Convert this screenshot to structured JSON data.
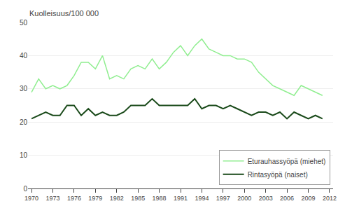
{
  "chart_data": {
    "type": "line",
    "ylabel": "Kuolleisuus/100 000",
    "x": [
      1970,
      1971,
      1972,
      1973,
      1974,
      1975,
      1976,
      1977,
      1978,
      1979,
      1980,
      1981,
      1982,
      1983,
      1984,
      1985,
      1986,
      1987,
      1988,
      1989,
      1990,
      1991,
      1992,
      1993,
      1994,
      1995,
      1996,
      1997,
      1998,
      1999,
      2000,
      2001,
      2002,
      2003,
      2004,
      2005,
      2006,
      2007,
      2008,
      2009,
      2010,
      2011
    ],
    "series": [
      {
        "name": "Eturauhassyöpä (miehet)",
        "color": "#90EE90",
        "values": [
          29,
          33,
          30,
          31,
          30,
          31,
          34,
          38,
          38,
          36,
          40,
          33,
          34,
          33,
          36,
          37,
          36,
          39,
          36,
          38,
          41,
          43,
          40,
          43,
          45,
          42,
          41,
          40,
          40,
          39,
          39,
          38,
          35,
          33,
          31,
          30,
          29,
          28,
          31,
          30,
          29,
          28
        ]
      },
      {
        "name": "Rintasyöpä (naiset)",
        "color": "#1a4a1a",
        "values": [
          21,
          22,
          23,
          22,
          22,
          25,
          25,
          22,
          24,
          22,
          23,
          22,
          22,
          23,
          25,
          25,
          25,
          27,
          25,
          25,
          25,
          25,
          25,
          27,
          24,
          25,
          25,
          24,
          25,
          24,
          23,
          22,
          23,
          23,
          22,
          23,
          21,
          23,
          22,
          21,
          22,
          21
        ]
      }
    ],
    "xlim": [
      1969.5,
      2012.5
    ],
    "xticks": [
      1970,
      1973,
      1976,
      1979,
      1982,
      1985,
      1988,
      1991,
      1994,
      1997,
      2000,
      2003,
      2006,
      2009,
      2012
    ],
    "ylim": [
      0,
      50
    ],
    "yticks": [
      0,
      10,
      20,
      30,
      40,
      50
    ],
    "grid": "y",
    "legend": "lower right"
  }
}
